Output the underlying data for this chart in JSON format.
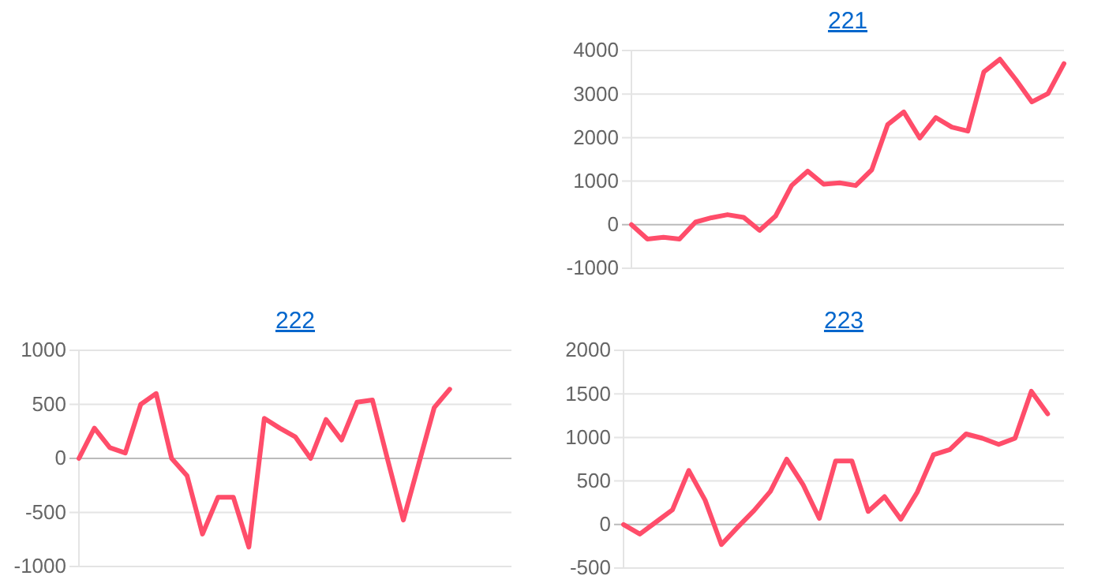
{
  "chart_data": [
    {
      "type": "line",
      "title": "221",
      "categories": [
        null,
        null,
        null,
        null,
        null,
        null,
        null,
        null,
        null,
        null,
        null,
        null,
        null,
        null,
        null,
        null,
        null,
        null,
        null,
        null,
        null,
        null,
        null,
        null,
        null,
        null,
        null,
        null
      ],
      "series": [
        {
          "color": "#ff4d6a",
          "values": [
            0,
            -330,
            -290,
            -330,
            60,
            160,
            230,
            170,
            -130,
            200,
            900,
            1230,
            930,
            960,
            900,
            1260,
            2300,
            2590,
            1990,
            2460,
            2240,
            2150,
            3510,
            3800,
            3330,
            2820,
            3010,
            3700
          ]
        }
      ],
      "ylim": [
        -1000,
        4000
      ],
      "yticks": [
        -1000,
        0,
        1000,
        2000,
        3000,
        4000
      ],
      "grid": "y",
      "marker": "none",
      "line_style": "solid"
    },
    {
      "type": "line",
      "title": "222",
      "categories": [
        null,
        null,
        null,
        null,
        null,
        null,
        null,
        null,
        null,
        null,
        null,
        null,
        null,
        null,
        null,
        null,
        null,
        null,
        null,
        null,
        null,
        null,
        null,
        null,
        null,
        null,
        null,
        null,
        null
      ],
      "series": [
        {
          "color": "#ff4d6a",
          "values": [
            0,
            280,
            100,
            50,
            500,
            600,
            0,
            -160,
            -700,
            -360,
            -360,
            -820,
            370,
            280,
            200,
            0,
            360,
            170,
            520,
            540,
            -20,
            -570,
            -50,
            470,
            640,
            null,
            null,
            null,
            null
          ]
        }
      ],
      "ylim": [
        -1000,
        1000
      ],
      "yticks": [
        -1000,
        -500,
        0,
        500,
        1000
      ],
      "grid": "y",
      "marker": "none",
      "line_style": "solid"
    },
    {
      "type": "line",
      "title": "223",
      "categories": [
        null,
        null,
        null,
        null,
        null,
        null,
        null,
        null,
        null,
        null,
        null,
        null,
        null,
        null,
        null,
        null,
        null,
        null,
        null,
        null,
        null,
        null,
        null,
        null,
        null,
        null,
        null,
        null
      ],
      "series": [
        {
          "color": "#ff4d6a",
          "values": [
            0,
            -110,
            30,
            170,
            620,
            280,
            -230,
            -30,
            160,
            380,
            750,
            460,
            70,
            730,
            730,
            150,
            320,
            60,
            370,
            800,
            860,
            1040,
            990,
            920,
            990,
            1530,
            1270,
            null
          ]
        }
      ],
      "ylim": [
        -500,
        2000
      ],
      "yticks": [
        -500,
        0,
        500,
        1000,
        1500,
        2000
      ],
      "grid": "y",
      "marker": "none",
      "line_style": "solid"
    }
  ]
}
